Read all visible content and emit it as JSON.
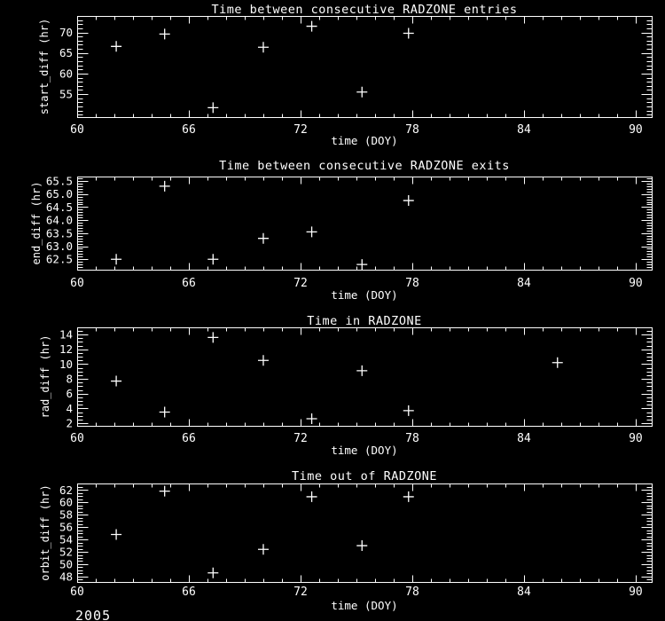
{
  "page": {
    "background": "#000000",
    "foreground": "#ffffff",
    "marker_color": "#ffffff",
    "footer_year": "2005"
  },
  "chart_data": [
    {
      "type": "scatter",
      "title": "Time between consecutive RADZONE entries",
      "xlabel": "time (DOY)",
      "ylabel": "start_diff (hr)",
      "marker": "plus",
      "grid": false,
      "legend": false,
      "xlim": [
        60,
        90.86
      ],
      "ylim": [
        49.4,
        74.0
      ],
      "xticks": [
        60,
        66,
        72,
        78,
        84,
        90
      ],
      "xtick_labels": [
        "60",
        "66",
        "72",
        "78",
        "84",
        "90"
      ],
      "yticks": [
        55,
        60,
        65,
        70
      ],
      "ytick_labels": [
        "55",
        "60",
        "65",
        "70"
      ],
      "x_minor_step": 1,
      "y_minor_step": 1,
      "x": [
        62.1,
        64.7,
        67.3,
        70.0,
        72.6,
        75.3,
        77.8
      ],
      "y": [
        66.6,
        69.6,
        51.7,
        66.4,
        71.5,
        55.5,
        69.8
      ]
    },
    {
      "type": "scatter",
      "title": "Time between consecutive RADZONE exits",
      "xlabel": "time (DOY)",
      "ylabel": "end_diff (hr)",
      "marker": "plus",
      "grid": false,
      "legend": false,
      "xlim": [
        60,
        90.86
      ],
      "ylim": [
        62.1,
        65.67
      ],
      "xticks": [
        60,
        66,
        72,
        78,
        84,
        90
      ],
      "xtick_labels": [
        "60",
        "66",
        "72",
        "78",
        "84",
        "90"
      ],
      "yticks": [
        62.5,
        63.0,
        63.5,
        64.0,
        64.5,
        65.0,
        65.5
      ],
      "ytick_labels": [
        "62.5",
        "63.0",
        "63.5",
        "64.0",
        "64.5",
        "65.0",
        "65.5"
      ],
      "x_minor_step": 1,
      "y_minor_step": 0.1,
      "x": [
        62.1,
        64.7,
        67.3,
        70.0,
        72.6,
        75.3,
        77.8
      ],
      "y": [
        62.5,
        65.3,
        62.5,
        63.3,
        63.55,
        62.3,
        64.75
      ]
    },
    {
      "type": "scatter",
      "title": "Time in RADZONE",
      "xlabel": "time (DOY)",
      "ylabel": "rad_diff (hr)",
      "marker": "plus",
      "grid": false,
      "legend": false,
      "xlim": [
        60,
        90.86
      ],
      "ylim": [
        1.64,
        14.97
      ],
      "xticks": [
        60,
        66,
        72,
        78,
        84,
        90
      ],
      "xtick_labels": [
        "60",
        "66",
        "72",
        "78",
        "84",
        "90"
      ],
      "yticks": [
        2,
        4,
        6,
        8,
        10,
        12,
        14
      ],
      "ytick_labels": [
        "2",
        "4",
        "6",
        "8",
        "10",
        "12",
        "14"
      ],
      "x_minor_step": 1,
      "y_minor_step": 0.5,
      "x": [
        62.1,
        64.7,
        67.3,
        70.0,
        72.6,
        75.3,
        77.8,
        85.8
      ],
      "y": [
        7.7,
        3.5,
        13.6,
        10.5,
        2.6,
        9.1,
        3.7,
        10.2
      ]
    },
    {
      "type": "scatter",
      "title": "Time out of RADZONE",
      "xlabel": "time (DOY)",
      "ylabel": "orbit_diff (hr)",
      "marker": "plus",
      "grid": false,
      "legend": false,
      "xlim": [
        60,
        90.86
      ],
      "ylim": [
        47.13,
        63.04
      ],
      "xticks": [
        60,
        66,
        72,
        78,
        84,
        90
      ],
      "xtick_labels": [
        "60",
        "66",
        "72",
        "78",
        "84",
        "90"
      ],
      "yticks": [
        48,
        50,
        52,
        54,
        56,
        58,
        60,
        62
      ],
      "ytick_labels": [
        "48",
        "50",
        "52",
        "54",
        "56",
        "58",
        "60",
        "62"
      ],
      "x_minor_step": 1,
      "y_minor_step": 0.5,
      "x": [
        62.1,
        64.7,
        67.3,
        70.0,
        72.6,
        75.3,
        77.8
      ],
      "y": [
        54.8,
        61.8,
        48.6,
        52.4,
        60.9,
        53.0,
        60.9
      ]
    }
  ]
}
